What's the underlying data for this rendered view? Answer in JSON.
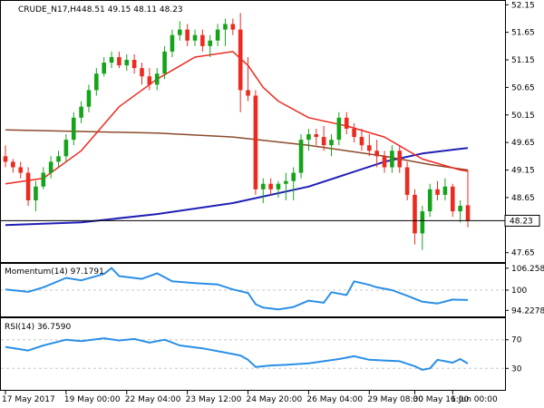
{
  "chart_data": {
    "type": "candlestick",
    "symbol_header": "CRUDE_N17,H4",
    "ohlc_header": "48.51 49.15 48.11 48.23",
    "colors": {
      "bull": "#15a31b",
      "bear": "#ec2a1f",
      "sma_fast": "#ec2a1f",
      "sma_mid": "#8b4a2b",
      "sma_slow": "#1f1fb5",
      "indicator": "#2a8fe6",
      "grid": "#c8c8c8",
      "level": "#000000"
    },
    "price_axis": {
      "ylim": [
        47.48,
        52.22
      ],
      "ticks": [
        "52.15",
        "51.65",
        "51.15",
        "50.65",
        "50.15",
        "49.65",
        "49.15",
        "48.65",
        "47.65"
      ],
      "tick_values": [
        52.15,
        51.65,
        51.15,
        50.65,
        50.15,
        49.65,
        49.15,
        48.65,
        47.65
      ]
    },
    "last_price": {
      "label": "48.23",
      "value": 48.23
    },
    "candles": [
      [
        49.4,
        49.6,
        49.2,
        49.3
      ],
      [
        49.3,
        49.35,
        49.1,
        49.2
      ],
      [
        49.2,
        49.3,
        49.0,
        49.1
      ],
      [
        49.1,
        49.2,
        48.5,
        48.6
      ],
      [
        48.6,
        48.95,
        48.4,
        48.85
      ],
      [
        48.85,
        49.2,
        48.8,
        49.1
      ],
      [
        49.1,
        49.4,
        49.0,
        49.3
      ],
      [
        49.3,
        49.5,
        49.2,
        49.4
      ],
      [
        49.4,
        49.8,
        49.3,
        49.7
      ],
      [
        49.7,
        50.2,
        49.6,
        50.1
      ],
      [
        50.1,
        50.4,
        50.0,
        50.3
      ],
      [
        50.3,
        50.7,
        50.2,
        50.6
      ],
      [
        50.6,
        51.0,
        50.5,
        50.9
      ],
      [
        50.9,
        51.2,
        50.85,
        51.1
      ],
      [
        51.1,
        51.3,
        51.0,
        51.2
      ],
      [
        51.2,
        51.3,
        51.0,
        51.05
      ],
      [
        51.05,
        51.25,
        50.95,
        51.15
      ],
      [
        51.15,
        51.25,
        50.9,
        51.0
      ],
      [
        51.0,
        51.1,
        50.7,
        50.85
      ],
      [
        50.85,
        51.0,
        50.6,
        50.7
      ],
      [
        50.7,
        51.0,
        50.6,
        50.9
      ],
      [
        50.9,
        51.4,
        50.8,
        51.3
      ],
      [
        51.3,
        51.7,
        51.2,
        51.6
      ],
      [
        51.6,
        51.85,
        51.5,
        51.7
      ],
      [
        51.7,
        51.8,
        51.4,
        51.5
      ],
      [
        51.5,
        51.7,
        51.4,
        51.6
      ],
      [
        51.6,
        51.7,
        51.3,
        51.4
      ],
      [
        51.4,
        51.6,
        51.2,
        51.5
      ],
      [
        51.5,
        51.8,
        51.4,
        51.7
      ],
      [
        51.7,
        51.9,
        51.4,
        51.8
      ],
      [
        51.8,
        51.9,
        51.6,
        51.7
      ],
      [
        51.7,
        52.0,
        50.2,
        50.6
      ],
      [
        50.6,
        51.2,
        50.4,
        50.5
      ],
      [
        50.5,
        50.6,
        48.7,
        48.8
      ],
      [
        48.8,
        49.0,
        48.55,
        48.9
      ],
      [
        48.9,
        49.0,
        48.7,
        48.8
      ],
      [
        48.8,
        48.95,
        48.65,
        48.9
      ],
      [
        48.9,
        49.1,
        48.6,
        48.95
      ],
      [
        48.95,
        49.2,
        48.6,
        49.1
      ],
      [
        49.1,
        49.8,
        49.0,
        49.7
      ],
      [
        49.7,
        49.9,
        49.5,
        49.8
      ],
      [
        49.8,
        49.9,
        49.6,
        49.75
      ],
      [
        49.75,
        49.95,
        49.5,
        49.6
      ],
      [
        49.6,
        49.8,
        49.4,
        49.7
      ],
      [
        49.7,
        50.2,
        49.6,
        50.1
      ],
      [
        50.1,
        50.2,
        49.8,
        49.9
      ],
      [
        49.9,
        50.0,
        49.65,
        49.75
      ],
      [
        49.75,
        49.9,
        49.5,
        49.6
      ],
      [
        49.6,
        49.8,
        49.4,
        49.5
      ],
      [
        49.5,
        49.7,
        49.2,
        49.4
      ],
      [
        49.4,
        49.5,
        49.1,
        49.2
      ],
      [
        49.2,
        49.6,
        49.1,
        49.5
      ],
      [
        49.5,
        49.6,
        49.1,
        49.2
      ],
      [
        49.2,
        49.3,
        48.6,
        48.7
      ],
      [
        48.7,
        48.8,
        47.8,
        48.0
      ],
      [
        48.0,
        48.5,
        47.7,
        48.4
      ],
      [
        48.4,
        48.9,
        48.3,
        48.8
      ],
      [
        48.8,
        48.95,
        48.6,
        48.7
      ],
      [
        48.7,
        49.0,
        48.6,
        48.85
      ],
      [
        48.85,
        48.9,
        48.3,
        48.4
      ],
      [
        48.4,
        48.6,
        48.2,
        48.5
      ],
      [
        48.51,
        49.15,
        48.11,
        48.23
      ]
    ],
    "sma_fast": [
      [
        0,
        48.9
      ],
      [
        5,
        49.0
      ],
      [
        10,
        49.5
      ],
      [
        15,
        50.3
      ],
      [
        20,
        50.8
      ],
      [
        25,
        51.2
      ],
      [
        30,
        51.3
      ],
      [
        32,
        51.05
      ],
      [
        34,
        50.65
      ],
      [
        36,
        50.4
      ],
      [
        40,
        50.1
      ],
      [
        45,
        49.95
      ],
      [
        50,
        49.75
      ],
      [
        55,
        49.35
      ],
      [
        60,
        49.15
      ],
      [
        61,
        49.13
      ]
    ],
    "sma_mid": [
      [
        0,
        49.88
      ],
      [
        10,
        49.85
      ],
      [
        20,
        49.82
      ],
      [
        30,
        49.75
      ],
      [
        40,
        49.6
      ],
      [
        50,
        49.4
      ],
      [
        56,
        49.25
      ],
      [
        61,
        49.15
      ]
    ],
    "sma_slow": [
      [
        0,
        48.15
      ],
      [
        10,
        48.2
      ],
      [
        20,
        48.35
      ],
      [
        30,
        48.55
      ],
      [
        40,
        48.85
      ],
      [
        50,
        49.3
      ],
      [
        55,
        49.45
      ],
      [
        61,
        49.55
      ]
    ],
    "momentum": {
      "label": "Momentum(14) 97.1791",
      "ylim": [
        92.5,
        107.5
      ],
      "ticks": [
        "106.2582",
        "100",
        "94.2278"
      ],
      "tick_values": [
        106.2582,
        100,
        94.2278
      ],
      "reference": 100,
      "values": [
        [
          0,
          100.2
        ],
        [
          3,
          99.5
        ],
        [
          5,
          100.8
        ],
        [
          8,
          103.5
        ],
        [
          10,
          102.8
        ],
        [
          13,
          104.6
        ],
        [
          14,
          106.3
        ],
        [
          15,
          104.0
        ],
        [
          18,
          103.2
        ],
        [
          20,
          104.8
        ],
        [
          22,
          102.5
        ],
        [
          25,
          102.0
        ],
        [
          28,
          101.6
        ],
        [
          30,
          100.2
        ],
        [
          32,
          99.2
        ],
        [
          33,
          96.0
        ],
        [
          34,
          95.0
        ],
        [
          36,
          94.5
        ],
        [
          38,
          95.2
        ],
        [
          40,
          97.0
        ],
        [
          42,
          96.4
        ],
        [
          43,
          99.4
        ],
        [
          45,
          98.6
        ],
        [
          46,
          102.5
        ],
        [
          48,
          101.5
        ],
        [
          49,
          100.8
        ],
        [
          51,
          100.0
        ],
        [
          53,
          98.4
        ],
        [
          55,
          96.7
        ],
        [
          57,
          96.2
        ],
        [
          59,
          97.3
        ],
        [
          61,
          97.18
        ]
      ]
    },
    "rsi": {
      "label": "RSI(14) 36.7590",
      "ylim": [
        0,
        100
      ],
      "ticks": [
        "70",
        "30"
      ],
      "tick_values": [
        70,
        30
      ],
      "reference_levels": [
        70,
        30
      ],
      "values": [
        [
          0,
          60
        ],
        [
          3,
          55
        ],
        [
          5,
          62
        ],
        [
          8,
          70
        ],
        [
          10,
          68
        ],
        [
          13,
          72
        ],
        [
          15,
          69
        ],
        [
          17,
          71
        ],
        [
          19,
          66
        ],
        [
          21,
          70
        ],
        [
          23,
          62
        ],
        [
          26,
          58
        ],
        [
          29,
          52
        ],
        [
          31,
          48
        ],
        [
          32,
          42
        ],
        [
          33,
          32
        ],
        [
          35,
          34
        ],
        [
          37,
          35
        ],
        [
          40,
          37
        ],
        [
          42,
          40
        ],
        [
          44,
          43
        ],
        [
          46,
          47
        ],
        [
          48,
          42
        ],
        [
          50,
          41
        ],
        [
          52,
          40
        ],
        [
          54,
          33
        ],
        [
          55,
          28
        ],
        [
          56,
          30
        ],
        [
          57,
          42
        ],
        [
          59,
          38
        ],
        [
          60,
          43
        ],
        [
          61,
          36.76
        ]
      ]
    },
    "x_axis": {
      "labels": [
        "17 May 2017",
        "19 May 00:00",
        "22 May 04:00",
        "23 May 12:00",
        "24 May 20:00",
        "26 May 04:00",
        "29 May 08:00",
        "30 May 16:00",
        "1 Jun 00:00"
      ],
      "label_indices": [
        0,
        8,
        16,
        24,
        32,
        40,
        48,
        54,
        59
      ]
    }
  }
}
